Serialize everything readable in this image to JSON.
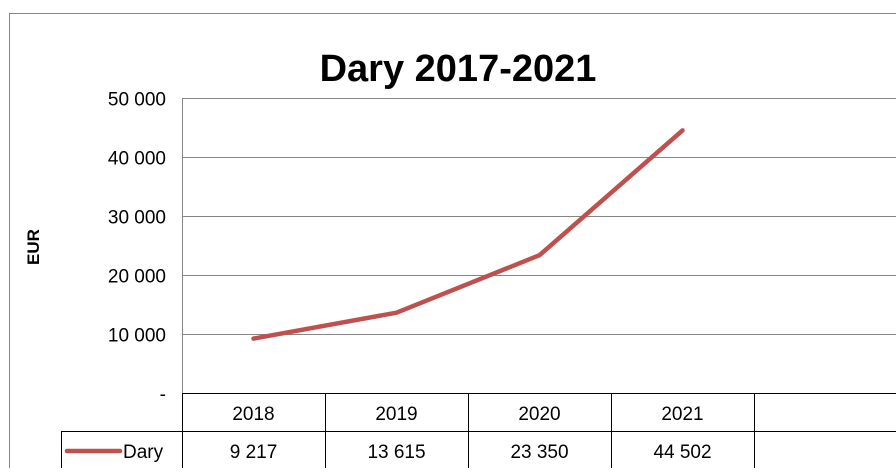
{
  "chart_data": {
    "type": "line",
    "title": "Dary 2017-2021",
    "xlabel": "",
    "ylabel": "EUR",
    "categories": [
      "2018",
      "2019",
      "2020",
      "2021"
    ],
    "y_tick_labels": [
      "-",
      "10 000",
      "20 000",
      "30 000",
      "40 000",
      "50 000"
    ],
    "ylim": [
      0,
      50000
    ],
    "grid": true,
    "legend_placement": "data-table",
    "series": [
      {
        "name": "Dary",
        "values": [
          9217,
          13615,
          23350,
          44502
        ],
        "value_labels": [
          "9 217",
          "13 615",
          "23 350",
          "44 502"
        ],
        "color": "#c0504d"
      }
    ]
  }
}
